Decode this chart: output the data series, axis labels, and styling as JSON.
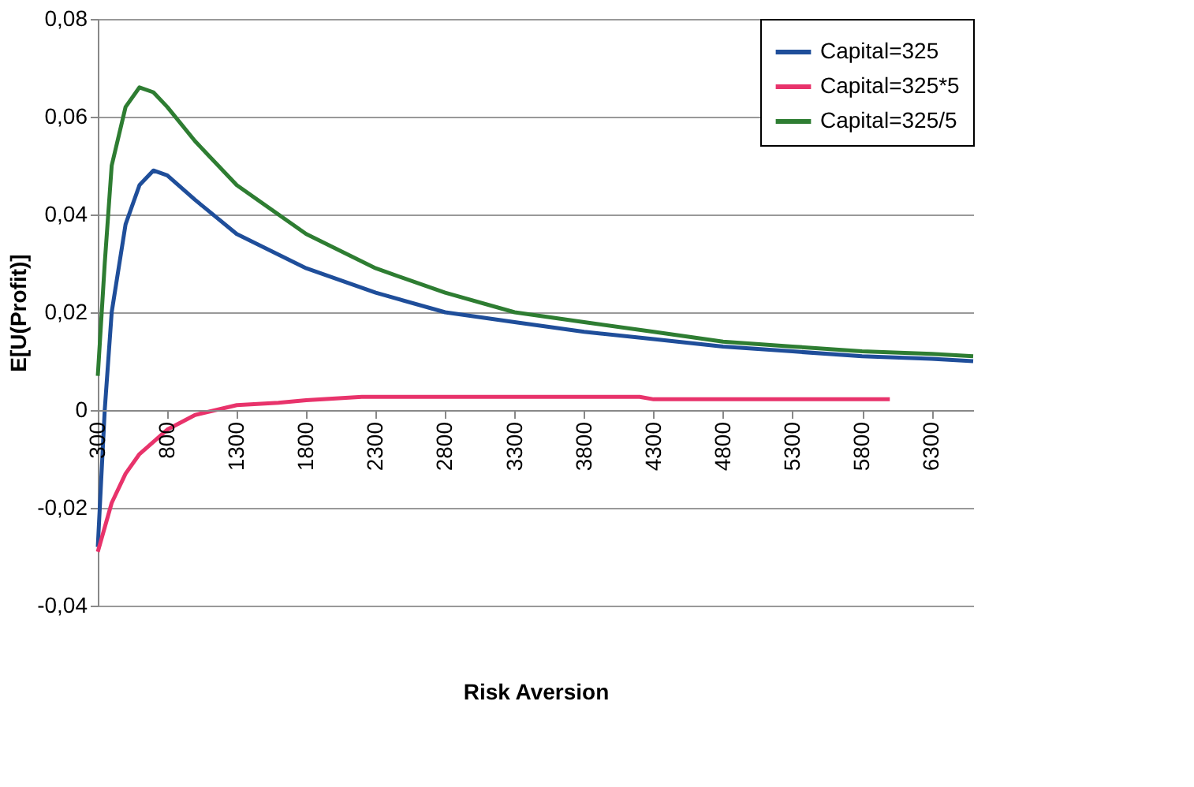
{
  "chart_data": {
    "type": "line",
    "xlabel": "Risk Aversion",
    "ylabel": "E[U(Profit)]",
    "xlim": [
      300,
      6600
    ],
    "xticks": [
      300,
      800,
      1300,
      1800,
      2300,
      2800,
      3300,
      3800,
      4300,
      4800,
      5300,
      5800,
      6300
    ],
    "ylim": [
      -0.04,
      0.08
    ],
    "yticks": [
      {
        "value": -0.04,
        "label": "-0,04"
      },
      {
        "value": -0.02,
        "label": "-0,02"
      },
      {
        "value": 0,
        "label": "0"
      },
      {
        "value": 0.02,
        "label": "0,02"
      },
      {
        "value": 0.04,
        "label": "0,04"
      },
      {
        "value": 0.06,
        "label": "0,06"
      },
      {
        "value": 0.08,
        "label": "0,08"
      }
    ],
    "grid": "y",
    "legend": "top right",
    "marker": "none",
    "line_style": "solid",
    "series": [
      {
        "name": "Capital=325",
        "color": "#1f4e9a",
        "x": [
          300,
          350,
          400,
          500,
          600,
          700,
          800,
          1000,
          1300,
          1800,
          2300,
          2800,
          3300,
          3800,
          4300,
          4800,
          5300,
          5800,
          6300,
          6600
        ],
        "values": [
          -0.028,
          0.0,
          0.02,
          0.038,
          0.046,
          0.049,
          0.048,
          0.043,
          0.036,
          0.029,
          0.024,
          0.02,
          0.018,
          0.016,
          0.0145,
          0.013,
          0.012,
          0.011,
          0.0105,
          0.01
        ]
      },
      {
        "name": "Capital=325*5",
        "color": "#e8336b",
        "x": [
          300,
          400,
          500,
          600,
          800,
          1000,
          1300,
          1600,
          1800,
          2200,
          4200,
          4300,
          6000
        ],
        "values": [
          -0.029,
          -0.019,
          -0.013,
          -0.009,
          -0.004,
          -0.001,
          0.001,
          0.0015,
          0.002,
          0.0027,
          0.0027,
          0.0022,
          0.0022
        ]
      },
      {
        "name": "Capital=325/5",
        "color": "#2e7d32",
        "x": [
          300,
          350,
          400,
          500,
          600,
          700,
          800,
          1000,
          1300,
          1800,
          2300,
          2800,
          3300,
          3800,
          4300,
          4800,
          5300,
          5800,
          6300,
          6600
        ],
        "values": [
          0.007,
          0.03,
          0.05,
          0.062,
          0.066,
          0.065,
          0.062,
          0.055,
          0.046,
          0.036,
          0.029,
          0.024,
          0.02,
          0.018,
          0.016,
          0.014,
          0.013,
          0.012,
          0.0115,
          0.011
        ]
      }
    ]
  }
}
